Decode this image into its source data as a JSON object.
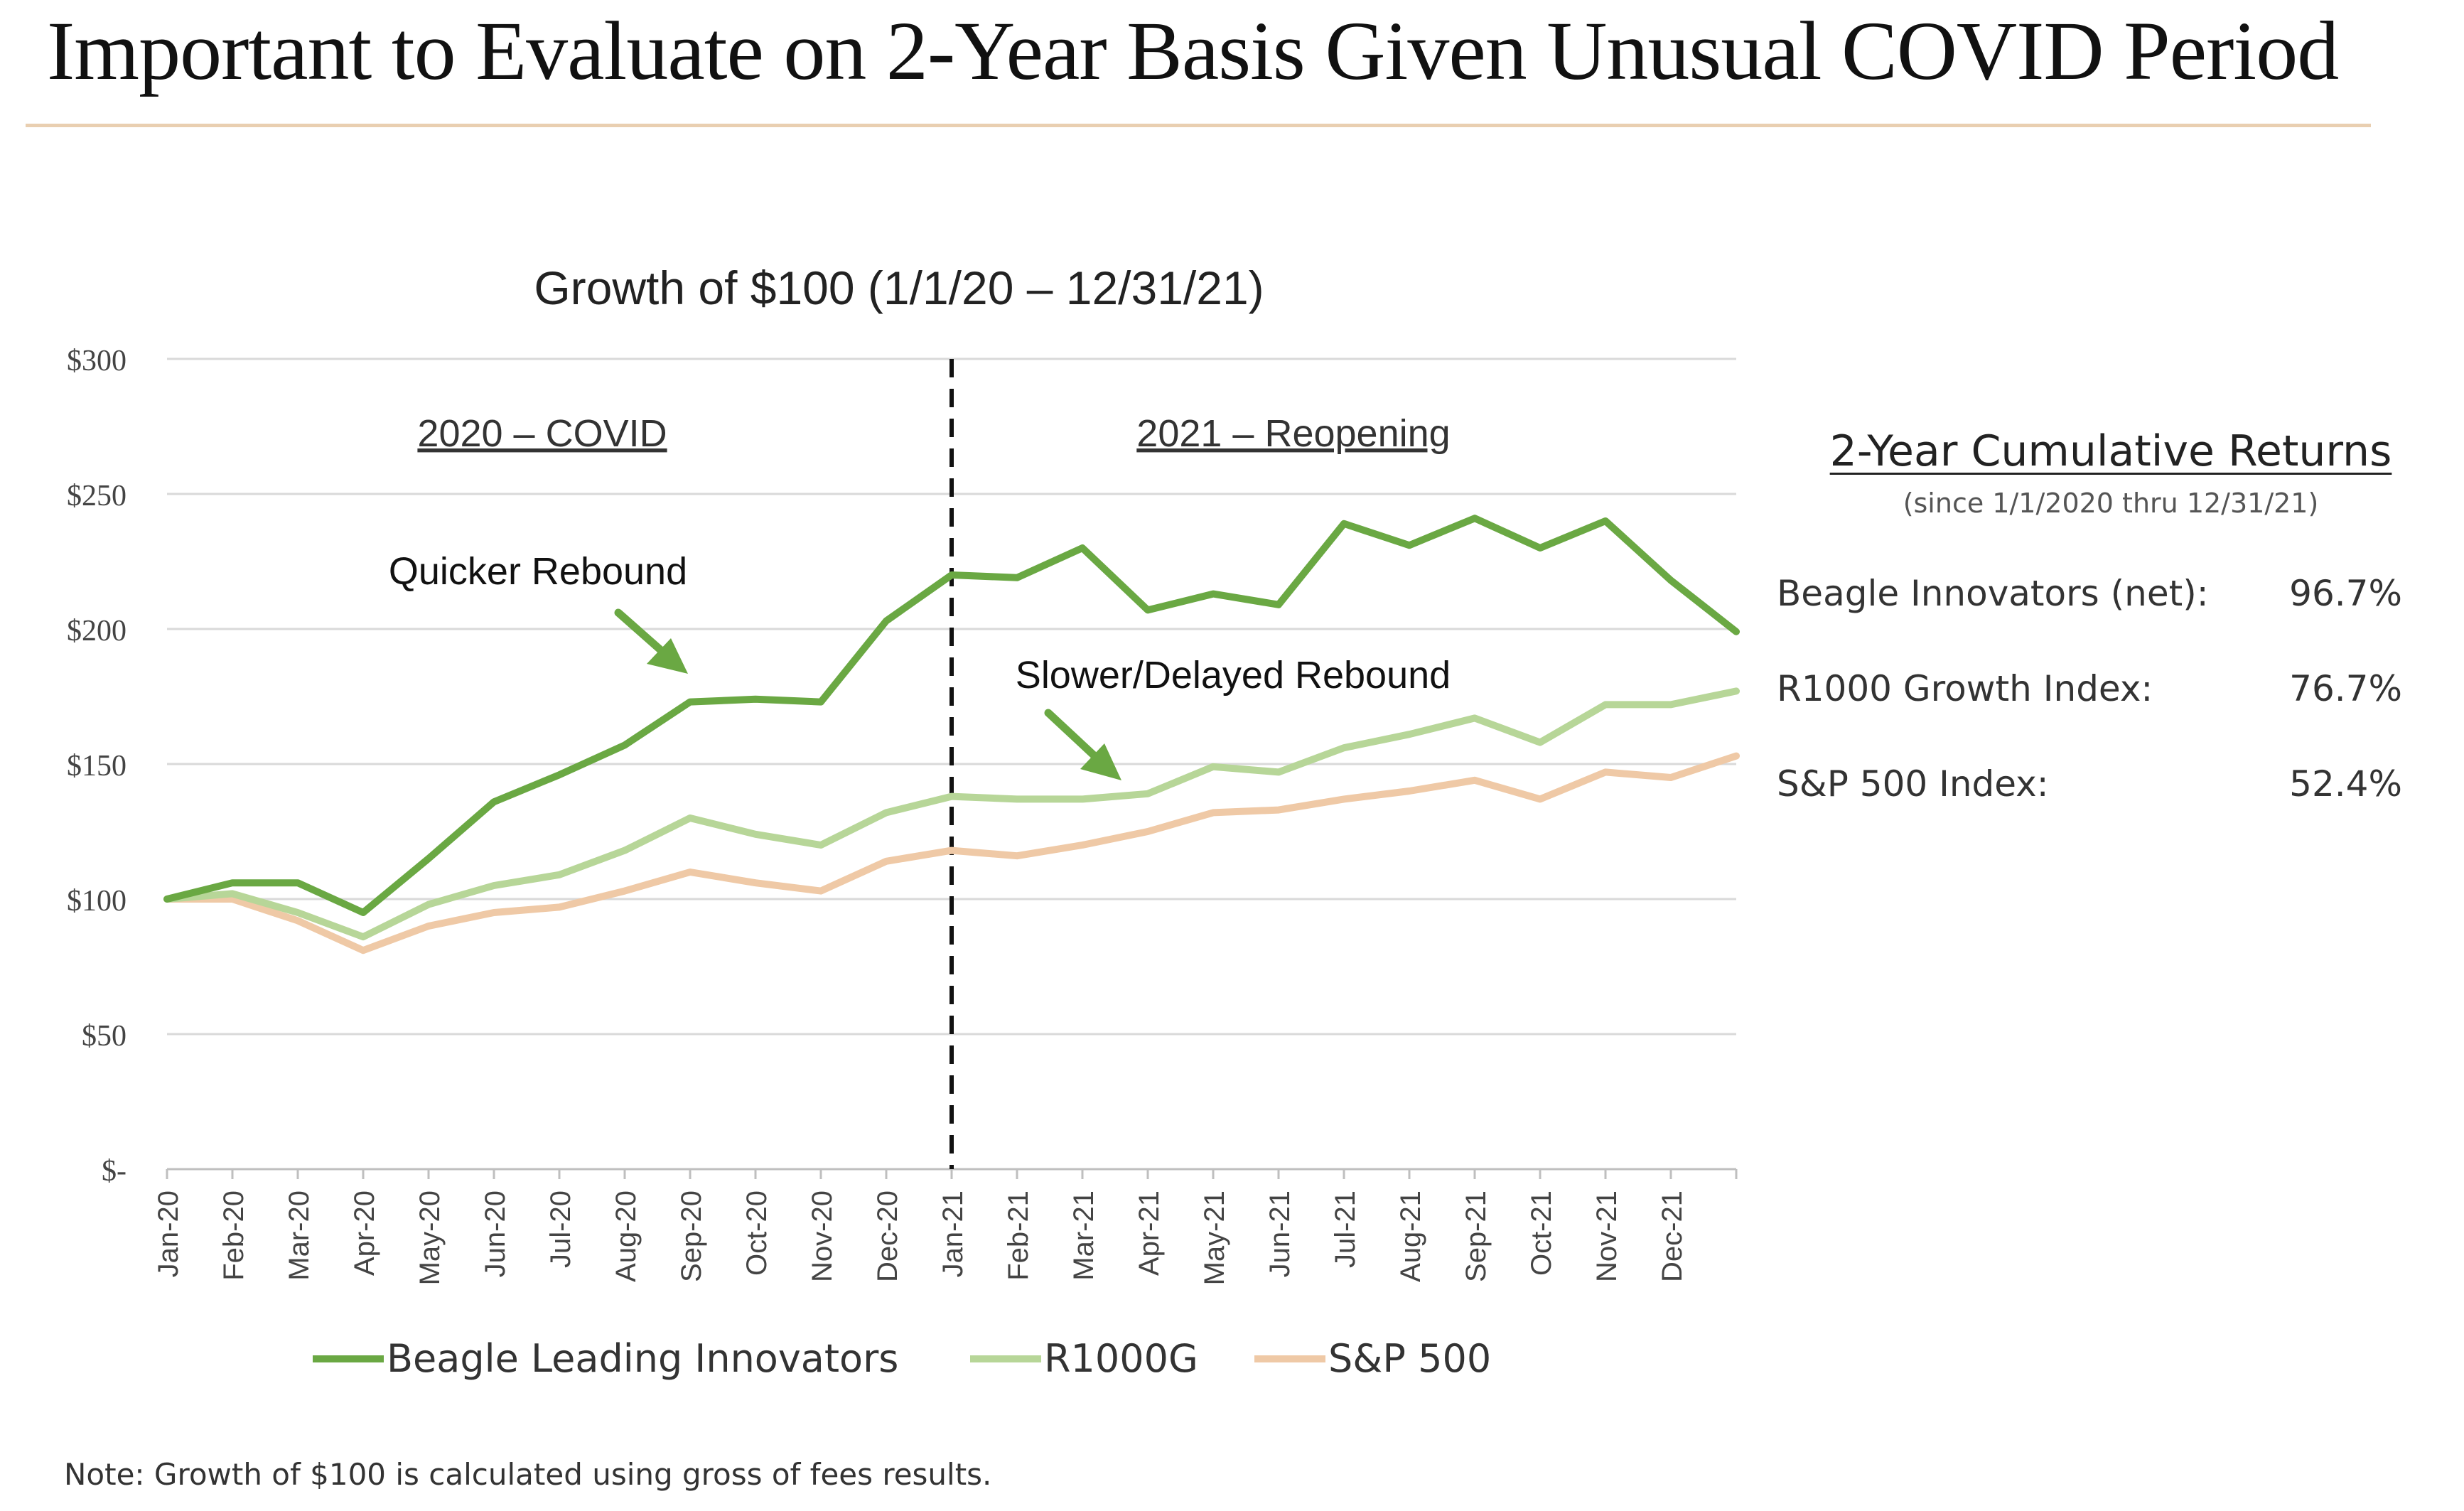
{
  "slide_title": "Important to Evaluate on 2-Year Basis Given Unusual COVID Period",
  "chart_data": {
    "type": "line",
    "title": "Growth of $100 (1/1/20 – 12/31/21)",
    "x": [
      "Jan-20",
      "Feb-20",
      "Mar-20",
      "Apr-20",
      "May-20",
      "Jun-20",
      "Jul-20",
      "Aug-20",
      "Sep-20",
      "Oct-20",
      "Nov-20",
      "Dec-20",
      "Jan-21",
      "Feb-21",
      "Mar-21",
      "Apr-21",
      "May-21",
      "Jun-21",
      "Jul-21",
      "Aug-21",
      "Sep-21",
      "Oct-21",
      "Nov-21",
      "Dec-21",
      ""
    ],
    "y_ticks": [
      "$-",
      "$50",
      "$100",
      "$150",
      "$200",
      "$250",
      "$300"
    ],
    "ylim": [
      0,
      300
    ],
    "grid": true,
    "legend_position": "bottom",
    "series": [
      {
        "name": "Beagle Leading Innovators",
        "color": "#6aa843",
        "values": [
          100,
          106,
          106,
          95,
          115,
          136,
          146,
          157,
          173,
          174,
          173,
          203,
          220,
          219,
          230,
          207,
          213,
          209,
          239,
          231,
          241,
          230,
          240,
          218,
          199
        ]
      },
      {
        "name": "R1000G",
        "color": "#b7d698",
        "values": [
          100,
          102,
          95,
          86,
          98,
          105,
          109,
          118,
          130,
          124,
          120,
          132,
          138,
          137,
          137,
          139,
          149,
          147,
          156,
          161,
          167,
          158,
          172,
          172,
          177
        ]
      },
      {
        "name": "S&P 500",
        "color": "#efc9a6",
        "values": [
          100,
          100,
          92,
          81,
          90,
          95,
          97,
          103,
          110,
          106,
          103,
          114,
          118,
          116,
          120,
          125,
          132,
          133,
          137,
          140,
          144,
          137,
          147,
          145,
          153
        ]
      }
    ],
    "divider_after": "Dec-20",
    "annotations": {
      "period_2020": "2020 – COVID",
      "period_2021": "2021 – Reopening",
      "quicker": "Quicker Rebound",
      "slower": "Slower/Delayed Rebound"
    }
  },
  "summary": {
    "title": "2-Year Cumulative Returns",
    "subtitle": "(since 1/1/2020 thru 12/31/21)",
    "rows": [
      {
        "label": "Beagle Innovators (net):",
        "value": "96.7%"
      },
      {
        "label": "R1000 Growth Index:",
        "value": "76.7%"
      },
      {
        "label": "S&P 500 Index:",
        "value": "52.4%"
      }
    ]
  },
  "note": "Note: Growth of $100 is calculated using gross of fees results."
}
